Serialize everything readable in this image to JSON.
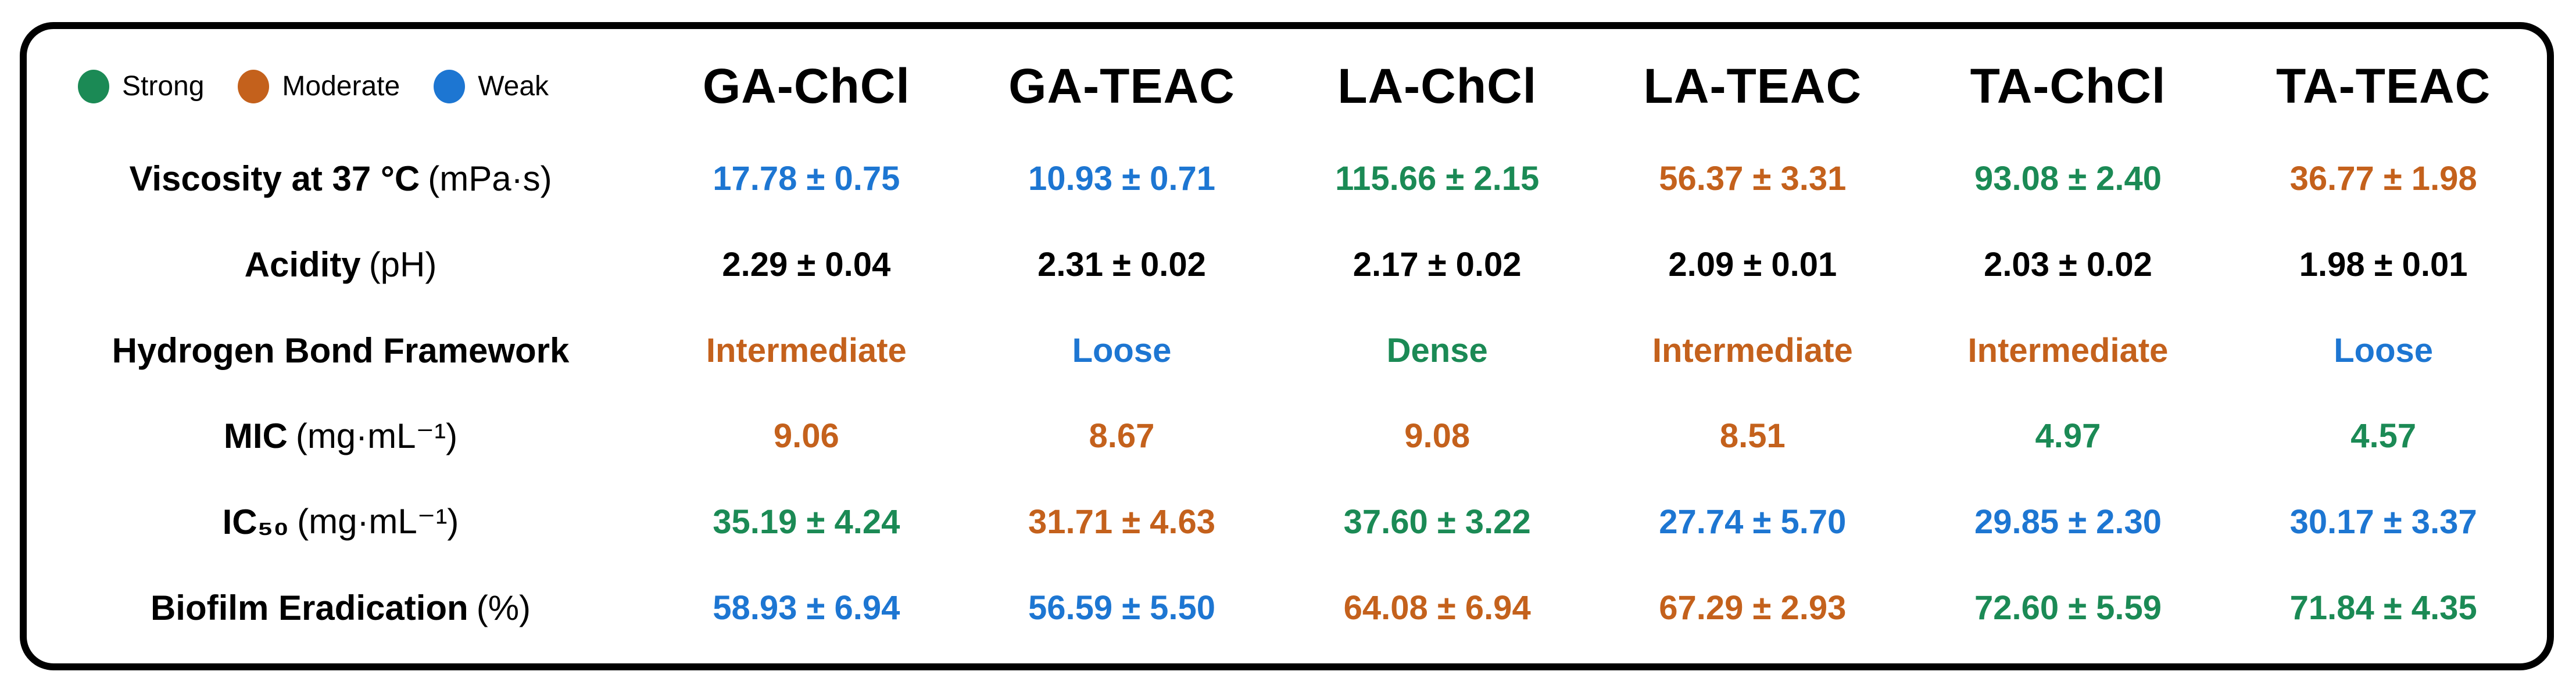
{
  "colors": {
    "strong": "#1b8a55",
    "moderate": "#c4611c",
    "weak": "#1d76d2",
    "neutral": "#000000"
  },
  "legend": {
    "items": [
      {
        "label": "Strong",
        "color": "#1b8a55"
      },
      {
        "label": "Moderate",
        "color": "#c4611c"
      },
      {
        "label": "Weak",
        "color": "#1d76d2"
      }
    ]
  },
  "chart_data": {
    "type": "table",
    "title": "",
    "legend_entries": [
      "Strong",
      "Moderate",
      "Weak"
    ],
    "columns": [
      "GA-ChCl",
      "GA-TEAC",
      "LA-ChCl",
      "LA-TEAC",
      "TA-ChCl",
      "TA-TEAC"
    ],
    "rows": [
      {
        "label": "Viscosity at 37 °C",
        "unit": "(mPa·s)",
        "cells": [
          {
            "text": "17.78 ± 0.75",
            "level": "weak"
          },
          {
            "text": "10.93 ± 0.71",
            "level": "weak"
          },
          {
            "text": "115.66 ± 2.15",
            "level": "strong"
          },
          {
            "text": "56.37 ± 3.31",
            "level": "moderate"
          },
          {
            "text": "93.08 ± 2.40",
            "level": "strong"
          },
          {
            "text": "36.77 ± 1.98",
            "level": "moderate"
          }
        ]
      },
      {
        "label": "Acidity",
        "unit": "(pH)",
        "cells": [
          {
            "text": "2.29 ± 0.04",
            "level": "neutral"
          },
          {
            "text": "2.31 ± 0.02",
            "level": "neutral"
          },
          {
            "text": "2.17 ± 0.02",
            "level": "neutral"
          },
          {
            "text": "2.09 ± 0.01",
            "level": "neutral"
          },
          {
            "text": "2.03 ± 0.02",
            "level": "neutral"
          },
          {
            "text": "1.98 ± 0.01",
            "level": "neutral"
          }
        ]
      },
      {
        "label": "Hydrogen Bond Framework",
        "unit": "",
        "cells": [
          {
            "text": "Intermediate",
            "level": "moderate"
          },
          {
            "text": "Loose",
            "level": "weak"
          },
          {
            "text": "Dense",
            "level": "strong"
          },
          {
            "text": "Intermediate",
            "level": "moderate"
          },
          {
            "text": "Intermediate",
            "level": "moderate"
          },
          {
            "text": "Loose",
            "level": "weak"
          }
        ]
      },
      {
        "label": "MIC",
        "unit": "(mg·mL⁻¹)",
        "cells": [
          {
            "text": "9.06",
            "level": "moderate"
          },
          {
            "text": "8.67",
            "level": "moderate"
          },
          {
            "text": "9.08",
            "level": "moderate"
          },
          {
            "text": "8.51",
            "level": "moderate"
          },
          {
            "text": "4.97",
            "level": "strong"
          },
          {
            "text": "4.57",
            "level": "strong"
          }
        ]
      },
      {
        "label": "IC₅₀",
        "unit": "(mg·mL⁻¹)",
        "cells": [
          {
            "text": "35.19 ± 4.24",
            "level": "strong"
          },
          {
            "text": "31.71 ± 4.63",
            "level": "moderate"
          },
          {
            "text": "37.60 ± 3.22",
            "level": "strong"
          },
          {
            "text": "27.74 ± 5.70",
            "level": "weak"
          },
          {
            "text": "29.85 ± 2.30",
            "level": "weak"
          },
          {
            "text": "30.17 ± 3.37",
            "level": "weak"
          }
        ]
      },
      {
        "label": "Biofilm Eradication",
        "unit": "(%)",
        "cells": [
          {
            "text": "58.93 ± 6.94",
            "level": "weak"
          },
          {
            "text": "56.59 ± 5.50",
            "level": "weak"
          },
          {
            "text": "64.08 ± 6.94",
            "level": "moderate"
          },
          {
            "text": "67.29 ± 2.93",
            "level": "moderate"
          },
          {
            "text": "72.60 ± 5.59",
            "level": "strong"
          },
          {
            "text": "71.84 ± 4.35",
            "level": "strong"
          }
        ]
      }
    ]
  }
}
